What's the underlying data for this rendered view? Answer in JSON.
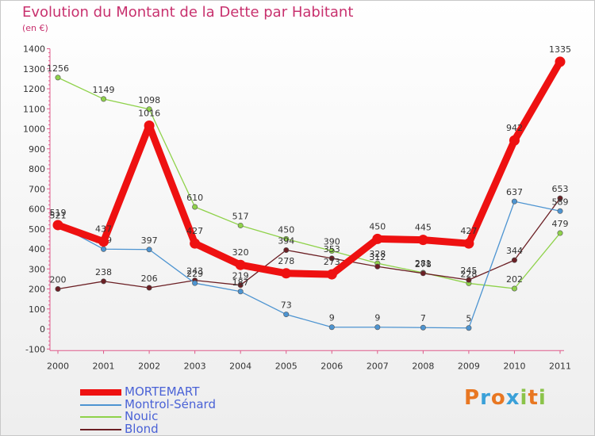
{
  "title": "Evolution du Montant de la Dette par Habitant",
  "subtitle": "(en €)",
  "brand": {
    "letters": [
      "P",
      "r",
      "o",
      "x",
      "i",
      "t",
      "i"
    ],
    "colors": [
      "#e87722",
      "#3aa0d8",
      "#e87722",
      "#3aa0d8",
      "#8bc34a",
      "#e87722",
      "#8bc34a"
    ]
  },
  "chart_data": {
    "type": "line",
    "title": "Evolution du Montant de la Dette par Habitant",
    "ylabel": "(en €)",
    "xlabel": "",
    "ylim": [
      -100,
      1400
    ],
    "yticks": [
      "-100",
      "0",
      "100",
      "200",
      "300",
      "400",
      "500",
      "600",
      "700",
      "800",
      "900",
      "1000",
      "1100",
      "1200",
      "1300",
      "1400"
    ],
    "x": [
      "2000",
      "2001",
      "2002",
      "2003",
      "2004",
      "2005",
      "2006",
      "2007",
      "2008",
      "2009",
      "2010",
      "2011"
    ],
    "grid": false,
    "legend_position": "bottom-left",
    "series": [
      {
        "name": "Nouic",
        "color": "#8fd24a",
        "values": [
          1256,
          1149,
          1098,
          610,
          517,
          450,
          390,
          328,
          281,
          228,
          202,
          479
        ]
      },
      {
        "name": "Blond",
        "color": "#6b1f24",
        "values": [
          200,
          238,
          206,
          243,
          219,
          394,
          353,
          312,
          278,
          245,
          344,
          653
        ]
      },
      {
        "name": "Montrol-Sénard",
        "color": "#4d94d1",
        "values": [
          521,
          399,
          397,
          229,
          187,
          73,
          9,
          9,
          7,
          5,
          637,
          589
        ]
      },
      {
        "name": "MORTEMART",
        "color": "#ee1111",
        "values": [
          519,
          437,
          1016,
          427,
          320,
          278,
          273,
          450,
          445,
          427,
          942,
          1335
        ]
      }
    ]
  }
}
